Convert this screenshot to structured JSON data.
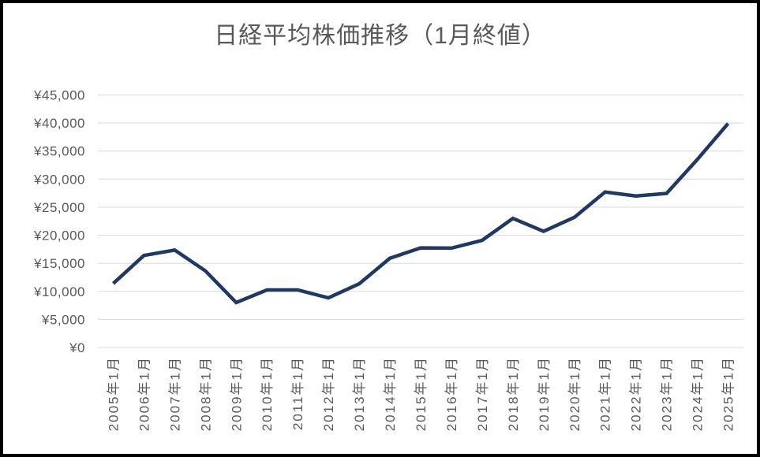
{
  "chart_data": {
    "type": "line",
    "title": "日経平均株価推移（1月終値）",
    "categories": [
      "2005年1月",
      "2006年1月",
      "2007年1月",
      "2008年1月",
      "2009年1月",
      "2010年1月",
      "2011年1月",
      "2012年1月",
      "2013年1月",
      "2014年1月",
      "2015年1月",
      "2016年1月",
      "2017年1月",
      "2018年1月",
      "2019年1月",
      "2020年1月",
      "2021年1月",
      "2022年1月",
      "2023年1月",
      "2024年1月",
      "2025年1月"
    ],
    "values": [
      11400,
      16400,
      17350,
      13650,
      8000,
      10250,
      10250,
      8850,
      11350,
      15900,
      17750,
      17700,
      19100,
      23000,
      20700,
      23200,
      27700,
      27000,
      27450,
      33500,
      39900
    ],
    "y_tick_labels": [
      "¥45,000",
      "¥40,000",
      "¥35,000",
      "¥30,000",
      "¥25,000",
      "¥20,000",
      "¥15,000",
      "¥10,000",
      "¥5,000",
      "¥0"
    ],
    "ylim": [
      0,
      45000
    ],
    "y_step": 5000,
    "xlabel": "",
    "ylabel": "",
    "grid": true,
    "legend_position": "none",
    "colors": {
      "line": "#1f3864",
      "gridline": "#d9d9d9",
      "axis_text": "#595959",
      "title_text": "#595959",
      "frame_border": "#000000",
      "background": "#ffffff"
    }
  }
}
